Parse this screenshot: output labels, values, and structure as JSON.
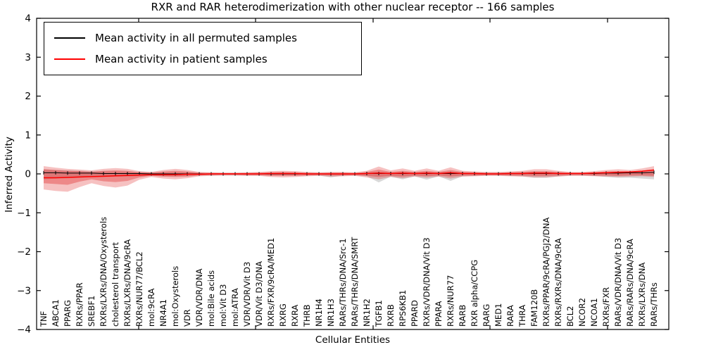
{
  "figure": {
    "title": "RXR and RAR heterodimerization with other nuclear receptor -- 166 samples",
    "xlabel": "Cellular Entities",
    "ylabel": "Inferred Activity"
  },
  "legend": {
    "entries": [
      {
        "label": "Mean activity in all permuted samples",
        "color": "#000000"
      },
      {
        "label": "Mean activity in patient samples",
        "color": "#ff0000"
      }
    ]
  },
  "chart_data": {
    "type": "line",
    "title": "RXR and RAR heterodimerization with other nuclear receptor -- 166 samples",
    "xlabel": "Cellular Entities",
    "ylabel": "Inferred Activity",
    "ylim": [
      -4,
      4
    ],
    "ytick_values": [
      4,
      3,
      2,
      1,
      0,
      -1,
      -2,
      -3,
      -4
    ],
    "ytick_labels": [
      "4",
      "3",
      "2",
      "1",
      "0",
      "−1",
      "−2",
      "−3",
      "−4"
    ],
    "grid": false,
    "legend_position": "upper left",
    "categories": [
      "TNF",
      "ABCA1",
      "PPARG",
      "RXRs/PPAR",
      "SREBF1",
      "RXRs/LXRs/DNA/Oxysterols",
      "cholesterol transport",
      "RXRs/LXRs/DNA/9cRA",
      "RXRs/NUR77/BCL2",
      "mol:9cRA",
      "NR4A1",
      "mol:Oxysterols",
      "VDR",
      "VDR/VDR/DNA",
      "mol:Bile acids",
      "mol:Vit D3",
      "mol:ATRA",
      "VDR/VDR/Vit D3",
      "VDR/Vit D3/DNA",
      "RXRs/FXR/9cRA/MED1",
      "RXRG",
      "RXRA",
      "THRB",
      "NR1H4",
      "NR1H3",
      "RARs/THRs/DNA/Src-1",
      "RARs/THRs/DNA/SMRT",
      "NR1H2",
      "TGFB1",
      "RXRB",
      "RPS6KB1",
      "PPARD",
      "RXRs/VDR/DNA/Vit D3",
      "PPARA",
      "RXRs/NUR77",
      "RARB",
      "RXR alpha/CCPG",
      "RARG",
      "MED1",
      "RARA",
      "THRA",
      "FAM120B",
      "RXRs/PPAR/9cRA/PGJ2/DNA",
      "RXRs/RXRs/DNA/9cRA",
      "BCL2",
      "NCOR2",
      "NCOA1",
      "RXRs/FXR",
      "RARs/VDR/DNA/Vit D3",
      "RARs/RARs/DNA/9cRA",
      "RXRs/LXRs/DNA",
      "RARs/THRs"
    ],
    "series": [
      {
        "name": "Mean activity in all permuted samples",
        "color": "#000000",
        "width": 1,
        "marker": "|",
        "values": [
          0.03,
          0.03,
          0.02,
          0.02,
          0.02,
          0.01,
          0.01,
          0.01,
          0.01,
          0,
          0,
          0,
          0,
          0,
          0,
          0,
          0,
          0,
          0,
          0,
          0,
          0,
          0,
          0,
          0,
          0,
          0,
          0.01,
          0.01,
          0.01,
          0.01,
          0.01,
          0.01,
          0.01,
          0.01,
          0.01,
          0.01,
          0,
          0,
          0.01,
          0.01,
          0.01,
          0.01,
          0.01,
          0.01,
          0.01,
          0.01,
          0.02,
          0.02,
          0.03,
          0.03,
          0.04
        ]
      },
      {
        "name": "Mean activity in patient samples",
        "color": "#ff0000",
        "width": 1.5,
        "marker": "none",
        "values": [
          -0.1,
          -0.1,
          -0.09,
          -0.08,
          -0.07,
          -0.06,
          -0.05,
          -0.04,
          -0.03,
          -0.02,
          -0.02,
          -0.02,
          -0.01,
          -0.01,
          0,
          0,
          0,
          0,
          0,
          0.01,
          0.01,
          0.01,
          0,
          0,
          0,
          0,
          0,
          0.01,
          0.02,
          0.01,
          0.02,
          0.01,
          0.02,
          0.01,
          0.03,
          0.01,
          0.01,
          0,
          0,
          0.01,
          0.01,
          0.02,
          0.02,
          0.01,
          0.01,
          0.01,
          0.02,
          0.03,
          0.04,
          0.05,
          0.07,
          0.1
        ]
      }
    ],
    "bands": [
      {
        "name": "permuted-envelope",
        "color": "#8a8a8a",
        "opacity": 0.32,
        "upper": [
          0.12,
          0.1,
          0.09,
          0.08,
          0.07,
          0.06,
          0.06,
          0.05,
          0.05,
          0.04,
          0.04,
          0.04,
          0.04,
          0.03,
          0.03,
          0.03,
          0.03,
          0.03,
          0.03,
          0.03,
          0.03,
          0.03,
          0.03,
          0.03,
          0.03,
          0.03,
          0.03,
          0.04,
          0.05,
          0.04,
          0.04,
          0.04,
          0.04,
          0.04,
          0.05,
          0.04,
          0.04,
          0.03,
          0.03,
          0.04,
          0.04,
          0.05,
          0.05,
          0.04,
          0.03,
          0.03,
          0.04,
          0.04,
          0.05,
          0.05,
          0.05,
          0.06
        ],
        "lower": [
          -0.14,
          -0.12,
          -0.11,
          -0.1,
          -0.08,
          -0.08,
          -0.07,
          -0.07,
          -0.06,
          -0.05,
          -0.06,
          -0.06,
          -0.05,
          -0.04,
          -0.04,
          -0.04,
          -0.04,
          -0.04,
          -0.04,
          -0.04,
          -0.04,
          -0.04,
          -0.04,
          -0.04,
          -0.09,
          -0.04,
          -0.04,
          -0.06,
          -0.22,
          -0.07,
          -0.14,
          -0.06,
          -0.15,
          -0.06,
          -0.18,
          -0.06,
          -0.05,
          -0.04,
          -0.04,
          -0.05,
          -0.06,
          -0.1,
          -0.1,
          -0.06,
          -0.04,
          -0.04,
          -0.05,
          -0.08,
          -0.1,
          -0.1,
          -0.12,
          -0.14
        ]
      },
      {
        "name": "patient-envelope-outer",
        "color": "#e03131",
        "opacity": 0.3,
        "upper": [
          0.2,
          0.16,
          0.13,
          0.11,
          0.09,
          0.13,
          0.15,
          0.13,
          0.07,
          0.05,
          0.1,
          0.13,
          0.1,
          0.05,
          0.04,
          0.03,
          0.03,
          0.04,
          0.05,
          0.07,
          0.08,
          0.07,
          0.05,
          0.04,
          0.05,
          0.05,
          0.04,
          0.08,
          0.19,
          0.09,
          0.14,
          0.08,
          0.14,
          0.08,
          0.17,
          0.08,
          0.06,
          0.05,
          0.05,
          0.06,
          0.08,
          0.12,
          0.12,
          0.08,
          0.05,
          0.05,
          0.07,
          0.1,
          0.12,
          0.1,
          0.14,
          0.2
        ],
        "lower": [
          -0.4,
          -0.44,
          -0.46,
          -0.34,
          -0.24,
          -0.31,
          -0.35,
          -0.3,
          -0.15,
          -0.08,
          -0.12,
          -0.14,
          -0.11,
          -0.06,
          -0.05,
          -0.04,
          -0.04,
          -0.05,
          -0.05,
          -0.08,
          -0.09,
          -0.08,
          -0.06,
          -0.05,
          -0.07,
          -0.06,
          -0.05,
          -0.09,
          -0.14,
          -0.08,
          -0.11,
          -0.07,
          -0.1,
          -0.07,
          -0.12,
          -0.07,
          -0.06,
          -0.05,
          -0.05,
          -0.06,
          -0.07,
          -0.09,
          -0.09,
          -0.07,
          -0.05,
          -0.05,
          -0.06,
          -0.07,
          -0.08,
          -0.07,
          -0.06,
          -0.08
        ]
      },
      {
        "name": "patient-envelope-inner",
        "color": "#e03131",
        "opacity": 0.4,
        "upper": [
          0.12,
          0.1,
          0.08,
          0.07,
          0.05,
          0.08,
          0.09,
          0.08,
          0.04,
          0.03,
          0.06,
          0.08,
          0.06,
          0.03,
          0.02,
          0.02,
          0.02,
          0.02,
          0.03,
          0.04,
          0.05,
          0.04,
          0.03,
          0.02,
          0.03,
          0.03,
          0.02,
          0.05,
          0.11,
          0.05,
          0.08,
          0.05,
          0.08,
          0.05,
          0.1,
          0.05,
          0.04,
          0.03,
          0.03,
          0.04,
          0.05,
          0.07,
          0.07,
          0.05,
          0.03,
          0.03,
          0.04,
          0.06,
          0.07,
          0.06,
          0.08,
          0.12
        ],
        "lower": [
          -0.24,
          -0.26,
          -0.28,
          -0.2,
          -0.14,
          -0.19,
          -0.21,
          -0.18,
          -0.09,
          -0.05,
          -0.07,
          -0.08,
          -0.07,
          -0.04,
          -0.03,
          -0.02,
          -0.02,
          -0.03,
          -0.03,
          -0.05,
          -0.05,
          -0.05,
          -0.04,
          -0.03,
          -0.04,
          -0.04,
          -0.03,
          -0.05,
          -0.08,
          -0.05,
          -0.07,
          -0.04,
          -0.06,
          -0.04,
          -0.07,
          -0.04,
          -0.04,
          -0.03,
          -0.03,
          -0.04,
          -0.04,
          -0.05,
          -0.05,
          -0.04,
          -0.03,
          -0.03,
          -0.04,
          -0.04,
          -0.05,
          -0.04,
          -0.04,
          -0.05
        ]
      }
    ]
  }
}
